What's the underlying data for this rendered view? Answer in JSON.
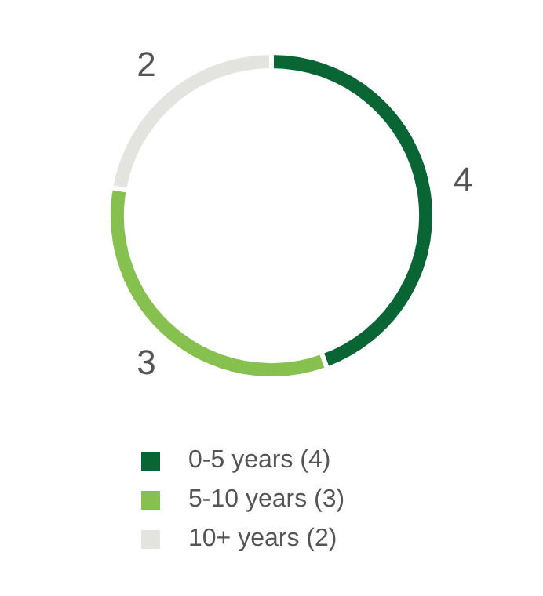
{
  "chart_data": {
    "type": "donut",
    "categories": [
      "0-5 years (4)",
      "5-10 years (3)",
      "10+ years (2)"
    ],
    "values": [
      4,
      3,
      2
    ],
    "colors": [
      "#0a6534",
      "#86c04f",
      "#e3e4df"
    ],
    "data_labels": true,
    "legend": "bottom"
  }
}
